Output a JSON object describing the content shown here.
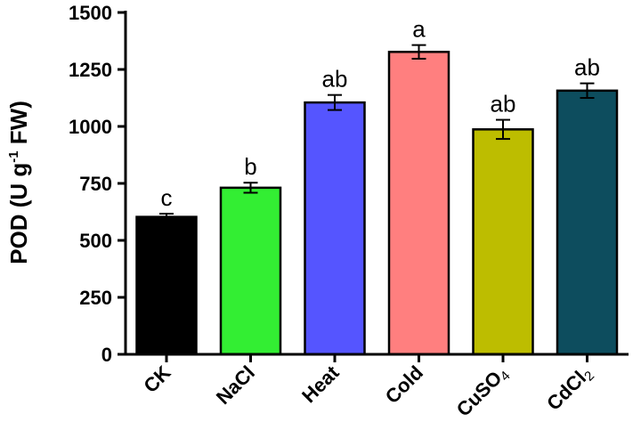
{
  "chart_data": {
    "type": "bar",
    "title": "",
    "xlabel": "",
    "ylabel": {
      "prefix": "POD (U g",
      "superscript": "-1",
      "suffix": " FW)"
    },
    "ylim": [
      0,
      1500
    ],
    "yticks": [
      0,
      250,
      500,
      750,
      1000,
      1250,
      1500
    ],
    "grid": false,
    "categories": [
      {
        "base": "CK",
        "sub": ""
      },
      {
        "base": "NaCl",
        "sub": ""
      },
      {
        "base": "Heat",
        "sub": ""
      },
      {
        "base": "Cold",
        "sub": ""
      },
      {
        "base": "CuSO",
        "sub": "4"
      },
      {
        "base": "CdCl",
        "sub": "2"
      }
    ],
    "values": [
      603,
      731,
      1105,
      1327,
      987,
      1157
    ],
    "errors": [
      14,
      22,
      33,
      30,
      42,
      32
    ],
    "significance": [
      "c",
      "b",
      "ab",
      "a",
      "ab",
      "ab"
    ],
    "colors": [
      "#000000",
      "#33ee33",
      "#5555ff",
      "#ff7f7f",
      "#bdbd00",
      "#0d4d5e"
    ]
  }
}
